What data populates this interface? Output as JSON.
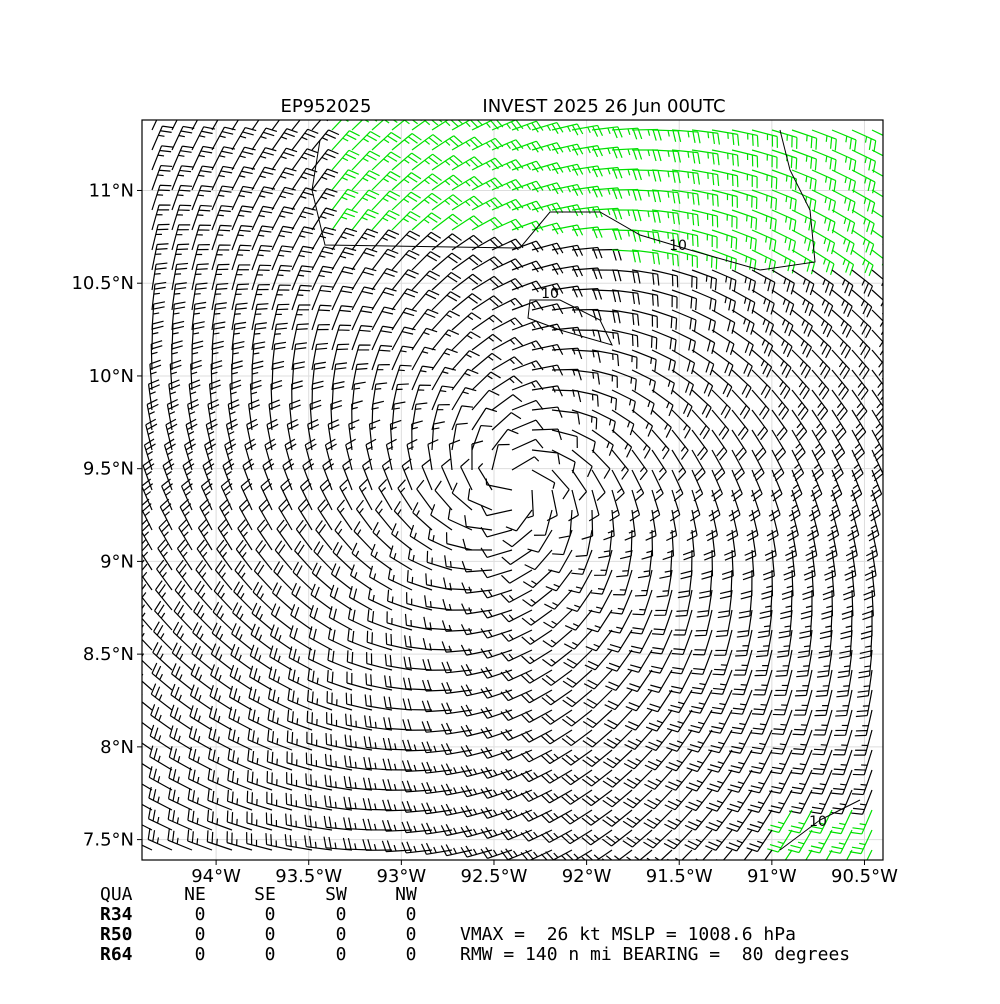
{
  "map": {
    "title_left": "EP952025",
    "title_right": "INVEST 2025 26 Jun 00UTC",
    "xlim": [
      -94.4,
      -90.4
    ],
    "ylim": [
      7.39,
      11.38
    ],
    "xticks": [
      {
        "value": -94,
        "label": "94°W"
      },
      {
        "value": -93.5,
        "label": "93.5°W"
      },
      {
        "value": -93,
        "label": "93°W"
      },
      {
        "value": -92.5,
        "label": "92.5°W"
      },
      {
        "value": -92,
        "label": "92°W"
      },
      {
        "value": -91.5,
        "label": "91.5°W"
      },
      {
        "value": -91,
        "label": "91°W"
      },
      {
        "value": -90.5,
        "label": "90.5°W"
      }
    ],
    "yticks": [
      {
        "value": 11,
        "label": "11°N"
      },
      {
        "value": 10.5,
        "label": "10.5°N"
      },
      {
        "value": 10,
        "label": "10°N"
      },
      {
        "value": 9.5,
        "label": "9.5°N"
      },
      {
        "value": 9,
        "label": "9°N"
      },
      {
        "value": 8.5,
        "label": "8.5°N"
      },
      {
        "value": 8,
        "label": "8°N"
      },
      {
        "value": 7.5,
        "label": "7.5°N"
      }
    ],
    "contour_labels": [
      "10",
      "10",
      "10"
    ]
  },
  "table": {
    "header": [
      "QUA",
      "NE",
      "SE",
      "SW",
      "NW"
    ],
    "rows": [
      [
        "R34",
        "0",
        "0",
        "0",
        "0"
      ],
      [
        "R50",
        "0",
        "0",
        "0",
        "0"
      ],
      [
        "R64",
        "0",
        "0",
        "0",
        "0"
      ]
    ]
  },
  "info": [
    "VMAX =  26 kt MSLP = 1008.6 hPa",
    "RMW = 140 n mi BEARING =  80 degrees"
  ]
}
